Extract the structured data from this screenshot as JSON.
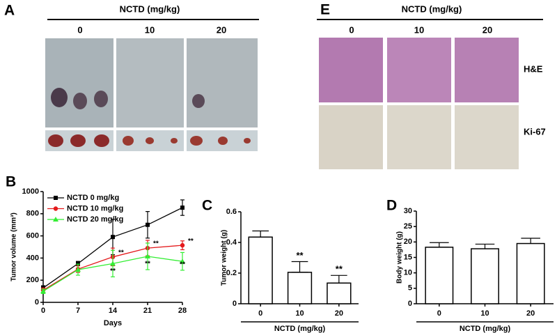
{
  "figure_a": {
    "label": "A",
    "header": "NCTD (mg/kg)",
    "groups": [
      "0",
      "10",
      "20"
    ]
  },
  "figure_e": {
    "label": "E",
    "header": "NCTD (mg/kg)",
    "groups": [
      "0",
      "10",
      "20"
    ],
    "rows": [
      "H&E",
      "Ki-67"
    ]
  },
  "chart_data": [
    {
      "type": "line",
      "label": "B",
      "xlabel": "Days",
      "ylabel": "Tumor volume (mm³)",
      "x": [
        0,
        7,
        14,
        21,
        28
      ],
      "xlim": [
        0,
        28
      ],
      "xticks": [
        0,
        7,
        14,
        21,
        28
      ],
      "ylim": [
        0,
        1000
      ],
      "yticks": [
        0,
        200,
        400,
        600,
        800,
        1000
      ],
      "legend": "upper left",
      "series": [
        {
          "name": "NCTD 0 mg/kg",
          "color": "#000000",
          "marker": "square",
          "values": [
            130,
            350,
            590,
            700,
            855
          ],
          "errors": [
            20,
            20,
            160,
            120,
            70
          ]
        },
        {
          "name": "NCTD 10 mg/kg",
          "color": "#e41a1c",
          "marker": "circle",
          "values": [
            110,
            300,
            410,
            490,
            515
          ],
          "errors": [
            20,
            30,
            80,
            70,
            40
          ],
          "annotations": [
            null,
            null,
            "**",
            "**",
            "**"
          ]
        },
        {
          "name": "NCTD 20 mg/kg",
          "color": "#33ee33",
          "marker": "triangle",
          "values": [
            100,
            295,
            350,
            415,
            370
          ],
          "errors": [
            20,
            50,
            120,
            120,
            80
          ],
          "annotations": [
            null,
            null,
            "**",
            "**",
            "**"
          ]
        }
      ]
    },
    {
      "type": "bar",
      "label": "C",
      "xlabel": "NCTD (mg/kg)",
      "ylabel": "Tumor weight (g)",
      "categories": [
        "0",
        "10",
        "20"
      ],
      "values": [
        0.435,
        0.205,
        0.135
      ],
      "errors": [
        0.04,
        0.07,
        0.05
      ],
      "annotations": [
        null,
        "**",
        "**"
      ],
      "color": "#ffffff",
      "ylim": [
        0,
        0.6
      ],
      "yticks": [
        0,
        0.2,
        0.4,
        0.6
      ]
    },
    {
      "type": "bar",
      "label": "D",
      "xlabel": "NCTD (mg/kg)",
      "ylabel": "Body weight (g)",
      "categories": [
        "0",
        "10",
        "20"
      ],
      "values": [
        18.3,
        17.8,
        19.5
      ],
      "errors": [
        1.5,
        1.5,
        1.7
      ],
      "color": "#ffffff",
      "ylim": [
        0,
        30
      ],
      "yticks": [
        0,
        5,
        10,
        15,
        20,
        25,
        30
      ]
    }
  ]
}
